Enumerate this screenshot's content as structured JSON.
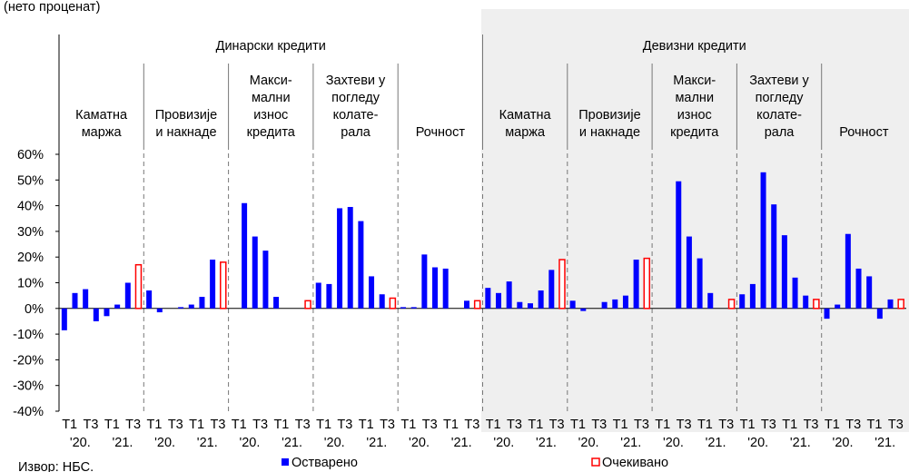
{
  "chart_data": {
    "type": "bar",
    "title": "(нето проценат)",
    "source": "Извор: НБС.",
    "sections": [
      "Динарски кредити",
      "Девизни кредити"
    ],
    "groups": [
      {
        "label": [
          "Каматна",
          "маржа"
        ]
      },
      {
        "label": [
          "Провизије",
          "и накнаде"
        ]
      },
      {
        "label": [
          "Макси-",
          "мални",
          "износ",
          "кредита"
        ]
      },
      {
        "label": [
          "Захтеви у",
          "погледу",
          "колате-",
          "рала"
        ]
      },
      {
        "label": [
          "Рочност"
        ]
      },
      {
        "label": [
          "Каматна",
          "маржа"
        ]
      },
      {
        "label": [
          "Провизије",
          "и накнаде"
        ]
      },
      {
        "label": [
          "Макси-",
          "мални",
          "износ",
          "кредита"
        ]
      },
      {
        "label": [
          "Захтеви у",
          "погледу",
          "колате-",
          "рала"
        ]
      },
      {
        "label": [
          "Рочност"
        ]
      }
    ],
    "categories": [
      "T1",
      null,
      "T3",
      null,
      "T1",
      null,
      "T3",
      null,
      "T1",
      null,
      "T3",
      null,
      "T1",
      null,
      "T3",
      null,
      "T1",
      null,
      "T3",
      null,
      "T1",
      null,
      "T3",
      null,
      "T1",
      null,
      "T3",
      null,
      "T1",
      null,
      "T3",
      null,
      "T1",
      null,
      "T3",
      null,
      "T1",
      null,
      "T3",
      null,
      "T1",
      null,
      "T3",
      null,
      "T1",
      null,
      "T3",
      null,
      "T1",
      null,
      "T3",
      null,
      "T1",
      null,
      "T3",
      null,
      "T1",
      null,
      "T3",
      null,
      "T1",
      null,
      "T3",
      null,
      "T1",
      null,
      "T3",
      null,
      "T1",
      null,
      "T3",
      null,
      "T1",
      null,
      "T3",
      null,
      "T1",
      null,
      "T3",
      null
    ],
    "years": [
      "'20.",
      "'21.",
      "'20.",
      "'21.",
      "'20.",
      "'21.",
      "'20.",
      "'21.",
      "'20.",
      "'21.",
      "'20.",
      "'21.",
      "'20.",
      "'21.",
      "'20.",
      "'21.",
      "'20.",
      "'21.",
      "'20.",
      "'21."
    ],
    "series": [
      {
        "name": "Остварено",
        "color": "#0000ff",
        "values": [
          -8.5,
          6,
          7.5,
          -5,
          -3,
          1.5,
          10,
          null,
          7,
          -1.5,
          0,
          0.5,
          1.5,
          4.5,
          19,
          null,
          0,
          41,
          28,
          22.5,
          4.5,
          0,
          0,
          null,
          10,
          9.5,
          39,
          39.5,
          34,
          12.5,
          5.5,
          null,
          0.5,
          0.5,
          21,
          16,
          15.5,
          0,
          3,
          null,
          8,
          6,
          10.5,
          2.5,
          2,
          7,
          15,
          null,
          3,
          -1,
          0,
          2.5,
          3.5,
          5,
          19,
          null,
          0,
          0,
          49.5,
          28,
          19.5,
          6,
          0,
          null,
          5.5,
          9.5,
          53,
          40.5,
          28.5,
          12,
          5,
          null,
          -4,
          1.5,
          29,
          15.5,
          12.5,
          -4,
          3.5,
          null
        ]
      },
      {
        "name": "Очекивано",
        "color": "#ff0000",
        "values": [
          null,
          null,
          null,
          null,
          null,
          null,
          null,
          17,
          null,
          null,
          null,
          null,
          null,
          null,
          null,
          18,
          null,
          null,
          null,
          null,
          null,
          null,
          null,
          3,
          null,
          null,
          null,
          null,
          null,
          null,
          null,
          4,
          null,
          null,
          null,
          null,
          null,
          null,
          null,
          3,
          null,
          null,
          null,
          null,
          null,
          null,
          null,
          19,
          null,
          null,
          null,
          null,
          null,
          null,
          null,
          19.5,
          null,
          null,
          null,
          null,
          null,
          null,
          null,
          3.5,
          null,
          null,
          null,
          null,
          null,
          null,
          null,
          3.5,
          null,
          null,
          null,
          null,
          null,
          null,
          null,
          3.5
        ]
      }
    ],
    "ylim": [
      -40,
      60
    ],
    "yticks": [
      {
        "value": -40,
        "label": "-40%"
      },
      {
        "value": -30,
        "label": "-30%"
      },
      {
        "value": -20,
        "label": "-20%"
      },
      {
        "value": -10,
        "label": "-10%"
      },
      {
        "value": 0,
        "label": "0%"
      },
      {
        "value": 10,
        "label": "10%"
      },
      {
        "value": 20,
        "label": "20%"
      },
      {
        "value": 30,
        "label": "30%"
      },
      {
        "value": 40,
        "label": "40%"
      },
      {
        "value": 50,
        "label": "50%"
      },
      {
        "value": 60,
        "label": "60%"
      }
    ]
  }
}
